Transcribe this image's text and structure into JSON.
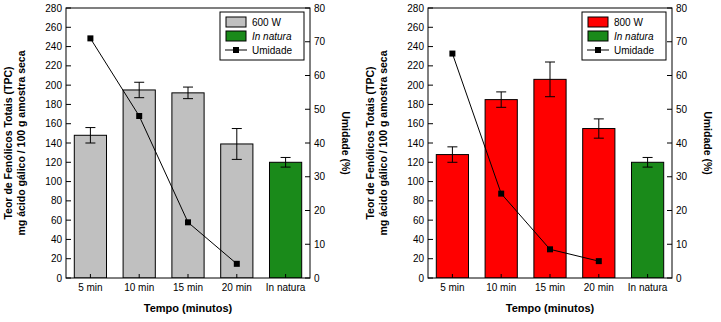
{
  "chart_data": [
    {
      "type": "bar",
      "stacked": true,
      "legend": "upper right",
      "categories": [
        "5 min",
        "10 min",
        "15 min",
        "20 min",
        "In natura"
      ],
      "xlabel": "Tempo (minutos)",
      "ylabel": [
        "Teor de Fenólicos Totais (TPC)",
        "mg ácido gálico / 100 g amostra seca"
      ],
      "y2label": "Umidade (%)",
      "ylim": [
        0,
        280
      ],
      "yticks": [
        0,
        20,
        40,
        60,
        80,
        100,
        120,
        140,
        160,
        180,
        200,
        220,
        240,
        260,
        280
      ],
      "y2lim": [
        0,
        80
      ],
      "y2ticks": [
        0,
        10,
        20,
        30,
        40,
        50,
        60,
        70,
        80
      ],
      "series": [
        {
          "name": "600 W",
          "type": "bar",
          "color": "#c0c0c0",
          "values": [
            148,
            195,
            192,
            139,
            null
          ],
          "errors": [
            8,
            8,
            6,
            16,
            null
          ]
        },
        {
          "name": "In natura",
          "type": "bar",
          "color": "#1a8a1a",
          "values": [
            null,
            null,
            null,
            null,
            120
          ],
          "errors": [
            null,
            null,
            null,
            null,
            5
          ]
        },
        {
          "name": "Umidade",
          "type": "line",
          "axis": "y2",
          "color": "#000000",
          "marker": "square",
          "line_style": "solid",
          "values": [
            71,
            48,
            16.5,
            4.2,
            null
          ]
        }
      ]
    },
    {
      "type": "bar",
      "stacked": true,
      "legend": "upper right",
      "categories": [
        "5 min",
        "10 min",
        "15 min",
        "20 min",
        "In natura"
      ],
      "xlabel": "Tempo (minutos)",
      "ylabel": [
        "Teor de Fenólicos Totais (TPC)",
        "mg ácido gálico / 100 g amostra seca"
      ],
      "y2label": "Umidade (%)",
      "ylim": [
        0,
        280
      ],
      "yticks": [
        0,
        20,
        40,
        60,
        80,
        100,
        120,
        140,
        160,
        180,
        200,
        220,
        240,
        260,
        280
      ],
      "y2lim": [
        0,
        80
      ],
      "y2ticks": [
        0,
        10,
        20,
        30,
        40,
        50,
        60,
        70,
        80
      ],
      "series": [
        {
          "name": "800 W",
          "type": "bar",
          "color": "#ff0000",
          "values": [
            128,
            185,
            206,
            155,
            null
          ],
          "errors": [
            8,
            8,
            18,
            10,
            null
          ]
        },
        {
          "name": "In natura",
          "type": "bar",
          "color": "#1a8a1a",
          "values": [
            null,
            null,
            null,
            null,
            120
          ],
          "errors": [
            null,
            null,
            null,
            null,
            5
          ]
        },
        {
          "name": "Umidade",
          "type": "line",
          "axis": "y2",
          "color": "#000000",
          "marker": "square",
          "line_style": "solid",
          "values": [
            66.5,
            25,
            8.5,
            5,
            null
          ]
        }
      ]
    }
  ]
}
